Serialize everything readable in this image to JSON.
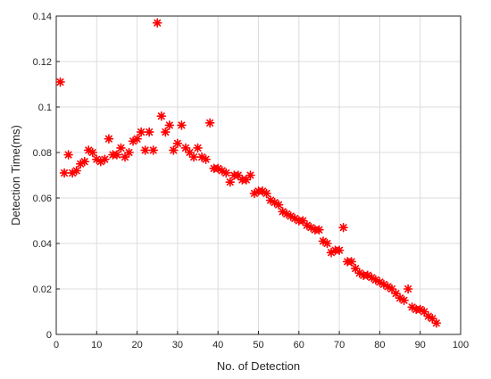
{
  "chart_data": {
    "type": "scatter",
    "title": "",
    "xlabel": "No. of Detection",
    "ylabel": "Detection Time(ms)",
    "xlim": [
      0,
      100
    ],
    "ylim": [
      0,
      0.14
    ],
    "xticks": [
      0,
      10,
      20,
      30,
      40,
      50,
      60,
      70,
      80,
      90,
      100
    ],
    "yticks": [
      0,
      0.02,
      0.04,
      0.06,
      0.08,
      0.1,
      0.12,
      0.14
    ],
    "ytick_labels": [
      "0",
      "0.02",
      "0.04",
      "0.06",
      "0.08",
      "0.1",
      "0.12",
      "0.14"
    ],
    "grid": true,
    "marker": "asterisk",
    "marker_color": "#ff0000",
    "x": [
      1,
      2,
      3,
      4,
      5,
      6,
      7,
      8,
      9,
      10,
      11,
      12,
      13,
      14,
      15,
      16,
      17,
      18,
      19,
      20,
      21,
      22,
      23,
      24,
      25,
      26,
      27,
      28,
      29,
      30,
      31,
      32,
      33,
      34,
      35,
      36,
      37,
      38,
      39,
      40,
      41,
      42,
      43,
      44,
      45,
      46,
      47,
      48,
      49,
      50,
      51,
      52,
      53,
      54,
      55,
      56,
      57,
      58,
      59,
      60,
      61,
      62,
      63,
      64,
      65,
      66,
      67,
      68,
      69,
      70,
      71,
      72,
      73,
      74,
      75,
      76,
      77,
      78,
      79,
      80,
      81,
      82,
      83,
      84,
      85,
      86,
      87,
      88,
      89,
      90,
      91,
      92,
      93,
      94
    ],
    "y": [
      0.111,
      0.071,
      0.079,
      0.071,
      0.072,
      0.075,
      0.076,
      0.081,
      0.08,
      0.077,
      0.076,
      0.077,
      0.086,
      0.079,
      0.079,
      0.082,
      0.078,
      0.08,
      0.085,
      0.086,
      0.089,
      0.081,
      0.089,
      0.081,
      0.137,
      0.096,
      0.089,
      0.092,
      0.081,
      0.084,
      0.092,
      0.082,
      0.08,
      0.078,
      0.082,
      0.078,
      0.077,
      0.093,
      0.073,
      0.073,
      0.072,
      0.071,
      0.067,
      0.07,
      0.07,
      0.068,
      0.068,
      0.07,
      0.062,
      0.063,
      0.063,
      0.062,
      0.059,
      0.058,
      0.057,
      0.054,
      0.053,
      0.052,
      0.051,
      0.05,
      0.05,
      0.048,
      0.047,
      0.046,
      0.046,
      0.041,
      0.04,
      0.036,
      0.037,
      0.037,
      0.047,
      0.032,
      0.032,
      0.029,
      0.027,
      0.026,
      0.026,
      0.025,
      0.024,
      0.023,
      0.022,
      0.021,
      0.02,
      0.018,
      0.016,
      0.015,
      0.02,
      0.012,
      0.011,
      0.011,
      0.01,
      0.008,
      0.007,
      0.005
    ]
  }
}
